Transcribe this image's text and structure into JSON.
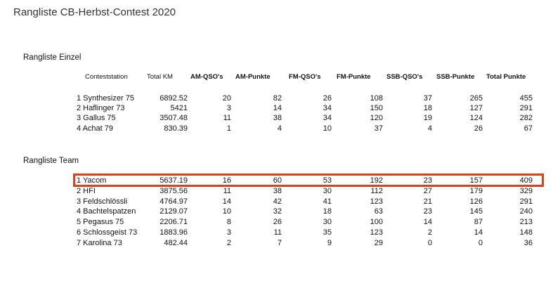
{
  "page_title": "Rangliste CB-Herbst-Contest 2020",
  "colors": {
    "highlight": "#d8431d"
  },
  "section_einzel": "Rangliste Einzel",
  "section_team": "Rangliste Team",
  "columns": [
    "Conteststation",
    "Total KM",
    "AM-QSO's",
    "AM-Punkte",
    "FM-QSO's",
    "FM-Punkte",
    "SSB-QSO's",
    "SSB-Punkte",
    "Total Punkte"
  ],
  "einzel_rows": [
    {
      "rank": "1 Synthesizer 75",
      "km": "6892.52",
      "am_qso": "20",
      "am_pkt": "82",
      "fm_qso": "26",
      "fm_pkt": "108",
      "ssb_qso": "37",
      "ssb_pkt": "265",
      "total": "455"
    },
    {
      "rank": "2 Haflinger 73",
      "km": "5421",
      "am_qso": "3",
      "am_pkt": "14",
      "fm_qso": "34",
      "fm_pkt": "150",
      "ssb_qso": "18",
      "ssb_pkt": "127",
      "total": "291"
    },
    {
      "rank": "3 Gallus 75",
      "km": "3507.48",
      "am_qso": "11",
      "am_pkt": "38",
      "fm_qso": "34",
      "fm_pkt": "120",
      "ssb_qso": "19",
      "ssb_pkt": "124",
      "total": "282"
    },
    {
      "rank": "4 Achat 79",
      "km": "830.39",
      "am_qso": "1",
      "am_pkt": "4",
      "fm_qso": "10",
      "fm_pkt": "37",
      "ssb_qso": "4",
      "ssb_pkt": "26",
      "total": "67"
    }
  ],
  "team_rows": [
    {
      "rank": "1 Yacom",
      "km": "5637.19",
      "am_qso": "16",
      "am_pkt": "60",
      "fm_qso": "53",
      "fm_pkt": "192",
      "ssb_qso": "23",
      "ssb_pkt": "157",
      "total": "409"
    },
    {
      "rank": "2 HFI",
      "km": "3875.56",
      "am_qso": "11",
      "am_pkt": "38",
      "fm_qso": "30",
      "fm_pkt": "112",
      "ssb_qso": "27",
      "ssb_pkt": "179",
      "total": "329"
    },
    {
      "rank": "3 Feldschlössli",
      "km": "4764.97",
      "am_qso": "14",
      "am_pkt": "42",
      "fm_qso": "41",
      "fm_pkt": "123",
      "ssb_qso": "21",
      "ssb_pkt": "126",
      "total": "291"
    },
    {
      "rank": "4 Bachtelspatzen",
      "km": "2129.07",
      "am_qso": "10",
      "am_pkt": "32",
      "fm_qso": "18",
      "fm_pkt": "63",
      "ssb_qso": "23",
      "ssb_pkt": "145",
      "total": "240"
    },
    {
      "rank": "5 Pegasus 75",
      "km": "2206.71",
      "am_qso": "8",
      "am_pkt": "26",
      "fm_qso": "30",
      "fm_pkt": "100",
      "ssb_qso": "14",
      "ssb_pkt": "87",
      "total": "213"
    },
    {
      "rank": "6 Schlossgeist 73",
      "km": "1883.96",
      "am_qso": "3",
      "am_pkt": "11",
      "fm_qso": "35",
      "fm_pkt": "123",
      "ssb_qso": "2",
      "ssb_pkt": "14",
      "total": "148"
    },
    {
      "rank": "7 Karolina 73",
      "km": "482.44",
      "am_qso": "2",
      "am_pkt": "7",
      "fm_qso": "9",
      "fm_pkt": "29",
      "ssb_qso": "0",
      "ssb_pkt": "0",
      "total": "36"
    }
  ]
}
